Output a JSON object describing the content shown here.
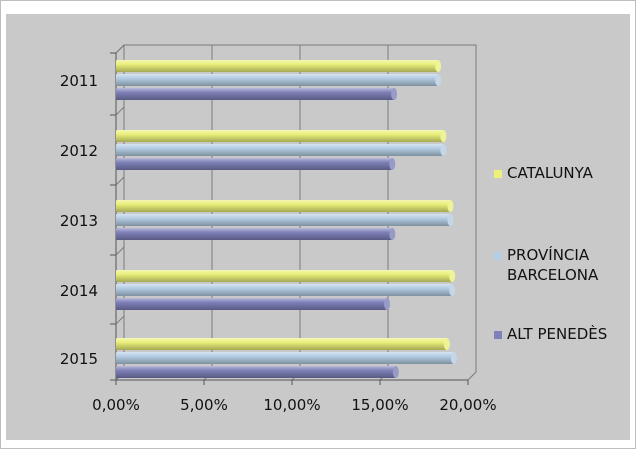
{
  "chart_data": {
    "type": "bar",
    "orientation": "horizontal",
    "style": "3d-cylinder",
    "categories": [
      "2011",
      "2012",
      "2013",
      "2014",
      "2015"
    ],
    "series": [
      {
        "name": "CATALUNYA",
        "values": [
          18.3,
          18.6,
          19.0,
          19.1,
          18.8
        ]
      },
      {
        "name": "PROVÍNCIA BARCELONA",
        "values": [
          18.3,
          18.6,
          19.0,
          19.1,
          19.2
        ]
      },
      {
        "name": "ALT PENEDÈS",
        "values": [
          15.8,
          15.7,
          15.7,
          15.4,
          15.9
        ]
      }
    ],
    "xlim": [
      0,
      20
    ],
    "x_ticks": [
      0,
      5,
      10,
      15,
      20
    ],
    "x_tick_labels": [
      "0,00%",
      "5,00%",
      "10,00%",
      "15,00%",
      "20,00%"
    ],
    "grid": "vertical",
    "legend_position": "right",
    "legend_labels": [
      "CATALUNYA",
      "PROVÍNCIA",
      "BARCELONA",
      "ALT PENEDÈS"
    ],
    "title": "",
    "xlabel": "",
    "ylabel": "",
    "colors": {
      "CATALUNYA": "#eaf07a",
      "PROVÍNCIA BARCELONA": "#b4cde3",
      "ALT PENEDÈS": "#7f82b9",
      "plot_background": "#c9c9c9",
      "gridline": "#7a7a7a"
    }
  }
}
